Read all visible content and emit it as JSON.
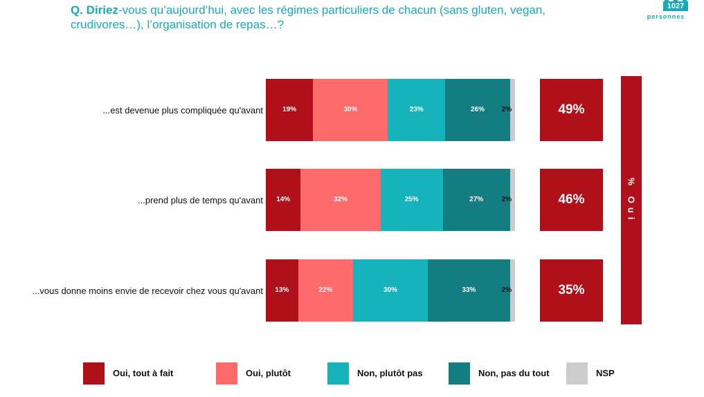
{
  "question": {
    "lead": "Q. Diriez",
    "rest": "-vous qu’aujourd’hui, avec les régimes particuliers de chacun (sans gluten, vegan, crudivores…), l’organisation de repas…?"
  },
  "sample": {
    "count": "1027",
    "label": "personnes"
  },
  "oui_band_label": "% Oui",
  "colors": {
    "oui_tout_a_fait": "#b0101a",
    "oui_plutot": "#ff6b6b",
    "non_plutot_pas": "#17b3bd",
    "non_pas_du_tout": "#137d82",
    "nsp": "#cccccc",
    "accent": "#17aab5"
  },
  "chart_data": {
    "type": "bar",
    "orientation": "horizontal-stacked-100",
    "categories": [
      "...est devenue plus compliquée qu'avant",
      "...prend plus de temps qu'avant",
      "...vous donne moins envie de recevoir chez vous qu'avant"
    ],
    "series": [
      {
        "name": "Oui, tout à fait",
        "values": [
          19,
          14,
          13
        ],
        "labels": [
          "19%",
          "14%",
          "13%"
        ]
      },
      {
        "name": "Oui, plutôt",
        "values": [
          30,
          32,
          22
        ],
        "labels": [
          "30%",
          "32%",
          "22%"
        ]
      },
      {
        "name": "Non, plutôt pas",
        "values": [
          23,
          25,
          30
        ],
        "labels": [
          "23%",
          "25%",
          "30%"
        ]
      },
      {
        "name": "Non, pas du tout",
        "values": [
          26,
          27,
          33
        ],
        "labels": [
          "26%",
          "27%",
          "33%"
        ]
      },
      {
        "name": "NSP",
        "values": [
          2,
          2,
          2
        ],
        "labels": [
          "2%",
          "2%",
          "2%"
        ]
      }
    ],
    "totals_oui": [
      "49%",
      "46%",
      "35%"
    ],
    "legend_position": "bottom",
    "xlim": [
      0,
      100
    ]
  }
}
